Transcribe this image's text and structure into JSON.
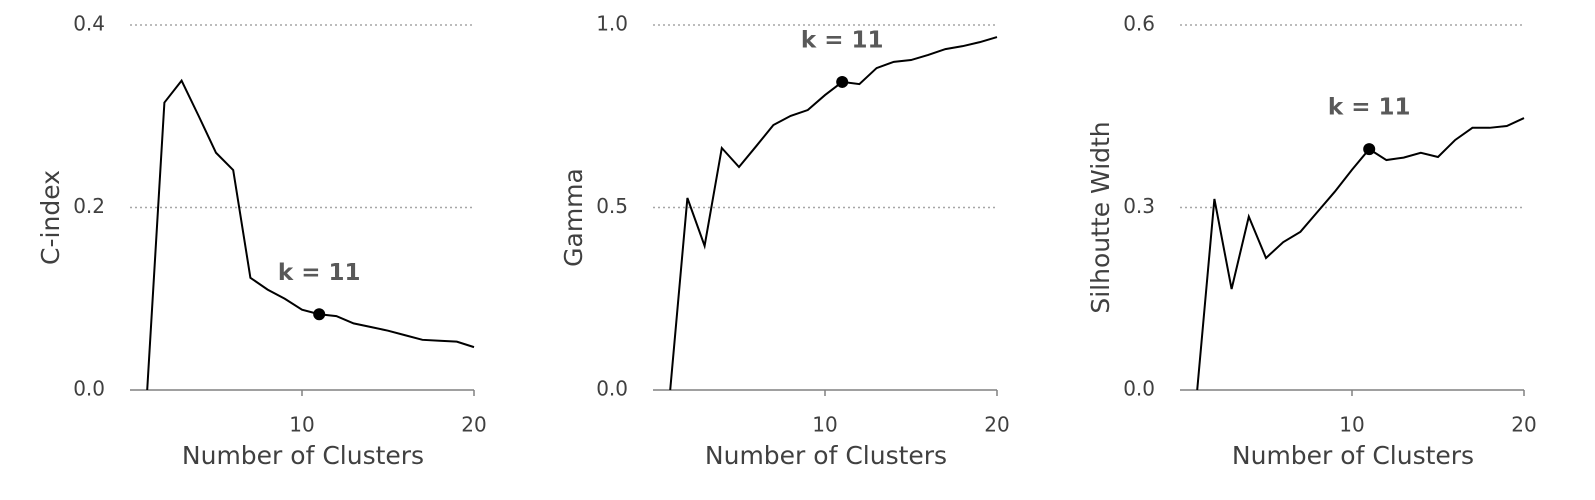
{
  "chart_data": [
    {
      "type": "line",
      "y_label": "C-index",
      "x_label": "Number of Clusters",
      "x": [
        1,
        2,
        3,
        4,
        5,
        6,
        7,
        8,
        9,
        10,
        11,
        12,
        13,
        14,
        15,
        16,
        17,
        18,
        19,
        20
      ],
      "values": [
        0,
        0.315,
        0.339,
        0.3,
        0.26,
        0.241,
        0.123,
        0.11,
        0.1,
        0.088,
        0.083,
        0.081,
        0.073,
        0.069,
        0.065,
        0.06,
        0.055,
        0.054,
        0.053,
        0.047
      ],
      "color": "#000000",
      "xlim": [
        0,
        20
      ],
      "xticks": [
        10,
        20
      ],
      "ylim": [
        0,
        0.4
      ],
      "yticks": [
        {
          "value": 0,
          "label": "0.0"
        },
        0.2,
        0.4
      ],
      "grid": true,
      "annotation": {
        "text": "k = 11",
        "x": 11
      }
    },
    {
      "type": "line",
      "y_label": "Gamma",
      "x_label": "Number of Clusters",
      "x": [
        1,
        2,
        3,
        4,
        5,
        6,
        7,
        8,
        9,
        10,
        11,
        12,
        13,
        14,
        15,
        16,
        17,
        18,
        19,
        20
      ],
      "values": [
        0,
        0.526,
        0.395,
        0.663,
        0.611,
        0.668,
        0.726,
        0.751,
        0.767,
        0.808,
        0.844,
        0.838,
        0.882,
        0.899,
        0.904,
        0.918,
        0.934,
        0.942,
        0.953,
        0.967
      ],
      "color": "#000000",
      "xlim": [
        0,
        20
      ],
      "xticks": [
        10,
        20
      ],
      "ylim": [
        0,
        1
      ],
      "yticks": [
        {
          "value": 0,
          "label": "0.0"
        },
        0.5,
        {
          "value": 1,
          "label": "1.0"
        }
      ],
      "grid": true,
      "annotation": {
        "text": "k = 11",
        "x": 11
      }
    },
    {
      "type": "line",
      "y_label": "Silhoutte Width",
      "x_label": "Number of Clusters",
      "x": [
        1,
        2,
        3,
        4,
        5,
        6,
        7,
        8,
        9,
        10,
        11,
        12,
        13,
        14,
        15,
        16,
        17,
        18,
        19,
        20
      ],
      "values": [
        0,
        0.314,
        0.166,
        0.285,
        0.217,
        0.243,
        0.26,
        0.293,
        0.326,
        0.362,
        0.396,
        0.378,
        0.382,
        0.39,
        0.383,
        0.411,
        0.431,
        0.431,
        0.434,
        0.447
      ],
      "color": "#000000",
      "xlim": [
        0,
        20
      ],
      "xticks": [
        10,
        20
      ],
      "ylim": [
        0,
        0.6
      ],
      "yticks": [
        {
          "value": 0,
          "label": "0.0"
        },
        0.3,
        0.6
      ],
      "grid": true,
      "annotation": {
        "text": "k = 11",
        "x": 11
      }
    }
  ]
}
